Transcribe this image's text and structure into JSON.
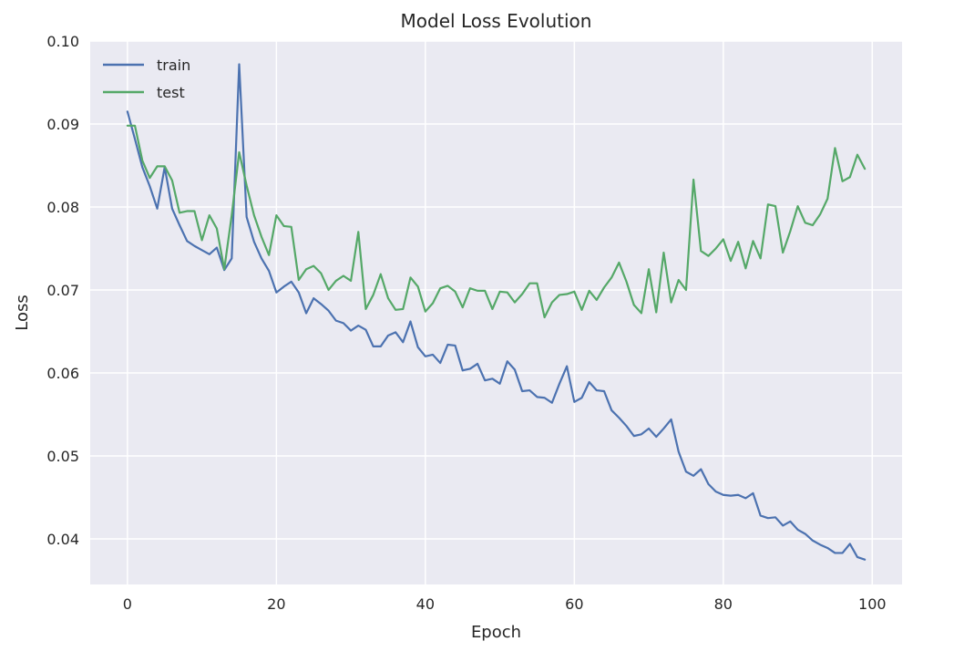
{
  "chart_data": {
    "type": "line",
    "title": "Model Loss Evolution",
    "xlabel": "Epoch",
    "ylabel": "Loss",
    "xlim": [
      -5,
      104
    ],
    "ylim": [
      0.0345,
      0.1
    ],
    "xticks": [
      0,
      20,
      40,
      60,
      80,
      100
    ],
    "xtick_labels": [
      "0",
      "20",
      "40",
      "60",
      "80",
      "100"
    ],
    "yticks": [
      0.04,
      0.05,
      0.06,
      0.07,
      0.08,
      0.09,
      0.1
    ],
    "ytick_labels": [
      "0.04",
      "0.05",
      "0.06",
      "0.07",
      "0.08",
      "0.09",
      "0.10"
    ],
    "grid": true,
    "legend_position": "top-left",
    "colors": {
      "background": "#eaeaf2",
      "grid": "#ffffff",
      "train": "#4c72b0",
      "test": "#55a868"
    },
    "series": [
      {
        "name": "train",
        "color": "#4c72b0",
        "values": [
          0.0915,
          0.0882,
          0.0848,
          0.0825,
          0.0798,
          0.0848,
          0.0798,
          0.0778,
          0.0759,
          0.0753,
          0.0748,
          0.0743,
          0.0751,
          0.0724,
          0.0738,
          0.0972,
          0.0788,
          0.0758,
          0.0738,
          0.0723,
          0.0697,
          0.0704,
          0.071,
          0.0697,
          0.0672,
          0.069,
          0.0683,
          0.0675,
          0.0663,
          0.066,
          0.0651,
          0.0657,
          0.0652,
          0.0632,
          0.0632,
          0.0645,
          0.0649,
          0.0637,
          0.0662,
          0.0631,
          0.062,
          0.0622,
          0.0612,
          0.0634,
          0.0633,
          0.0603,
          0.0605,
          0.0611,
          0.0591,
          0.0593,
          0.0587,
          0.0614,
          0.0604,
          0.0578,
          0.0579,
          0.0571,
          0.057,
          0.0564,
          0.0587,
          0.0608,
          0.0565,
          0.057,
          0.0589,
          0.0579,
          0.0578,
          0.0555,
          0.0546,
          0.0536,
          0.0524,
          0.0526,
          0.0533,
          0.0523,
          0.0533,
          0.0544,
          0.0505,
          0.0481,
          0.0476,
          0.0484,
          0.0466,
          0.0457,
          0.0453,
          0.0452,
          0.0453,
          0.0449,
          0.0455,
          0.0428,
          0.0425,
          0.0426,
          0.0416,
          0.0421,
          0.0411,
          0.0406,
          0.0398,
          0.0393,
          0.0389,
          0.0383,
          0.0383,
          0.0394,
          0.0378,
          0.0375
        ]
      },
      {
        "name": "test",
        "color": "#55a868",
        "values": [
          0.0898,
          0.0898,
          0.0856,
          0.0835,
          0.0849,
          0.0849,
          0.0832,
          0.0793,
          0.0795,
          0.0795,
          0.076,
          0.079,
          0.0774,
          0.0725,
          0.079,
          0.0866,
          0.0826,
          0.079,
          0.0764,
          0.0742,
          0.079,
          0.0777,
          0.0776,
          0.0712,
          0.0725,
          0.0729,
          0.072,
          0.07,
          0.0711,
          0.0717,
          0.0711,
          0.077,
          0.0677,
          0.0694,
          0.0719,
          0.069,
          0.0676,
          0.0677,
          0.0715,
          0.0704,
          0.0674,
          0.0684,
          0.0702,
          0.0705,
          0.0698,
          0.0679,
          0.0702,
          0.0699,
          0.0699,
          0.0677,
          0.0698,
          0.0697,
          0.0685,
          0.0695,
          0.0708,
          0.0708,
          0.0667,
          0.0685,
          0.0694,
          0.0695,
          0.0698,
          0.0676,
          0.0699,
          0.0688,
          0.0703,
          0.0715,
          0.0733,
          0.071,
          0.0682,
          0.0672,
          0.0725,
          0.0673,
          0.0745,
          0.0685,
          0.0712,
          0.07,
          0.0833,
          0.0747,
          0.0741,
          0.075,
          0.0761,
          0.0735,
          0.0758,
          0.0726,
          0.0759,
          0.0738,
          0.0803,
          0.0801,
          0.0745,
          0.0771,
          0.0801,
          0.0781,
          0.0778,
          0.0791,
          0.081,
          0.0871,
          0.0831,
          0.0836,
          0.0863,
          0.0846
        ]
      }
    ]
  }
}
